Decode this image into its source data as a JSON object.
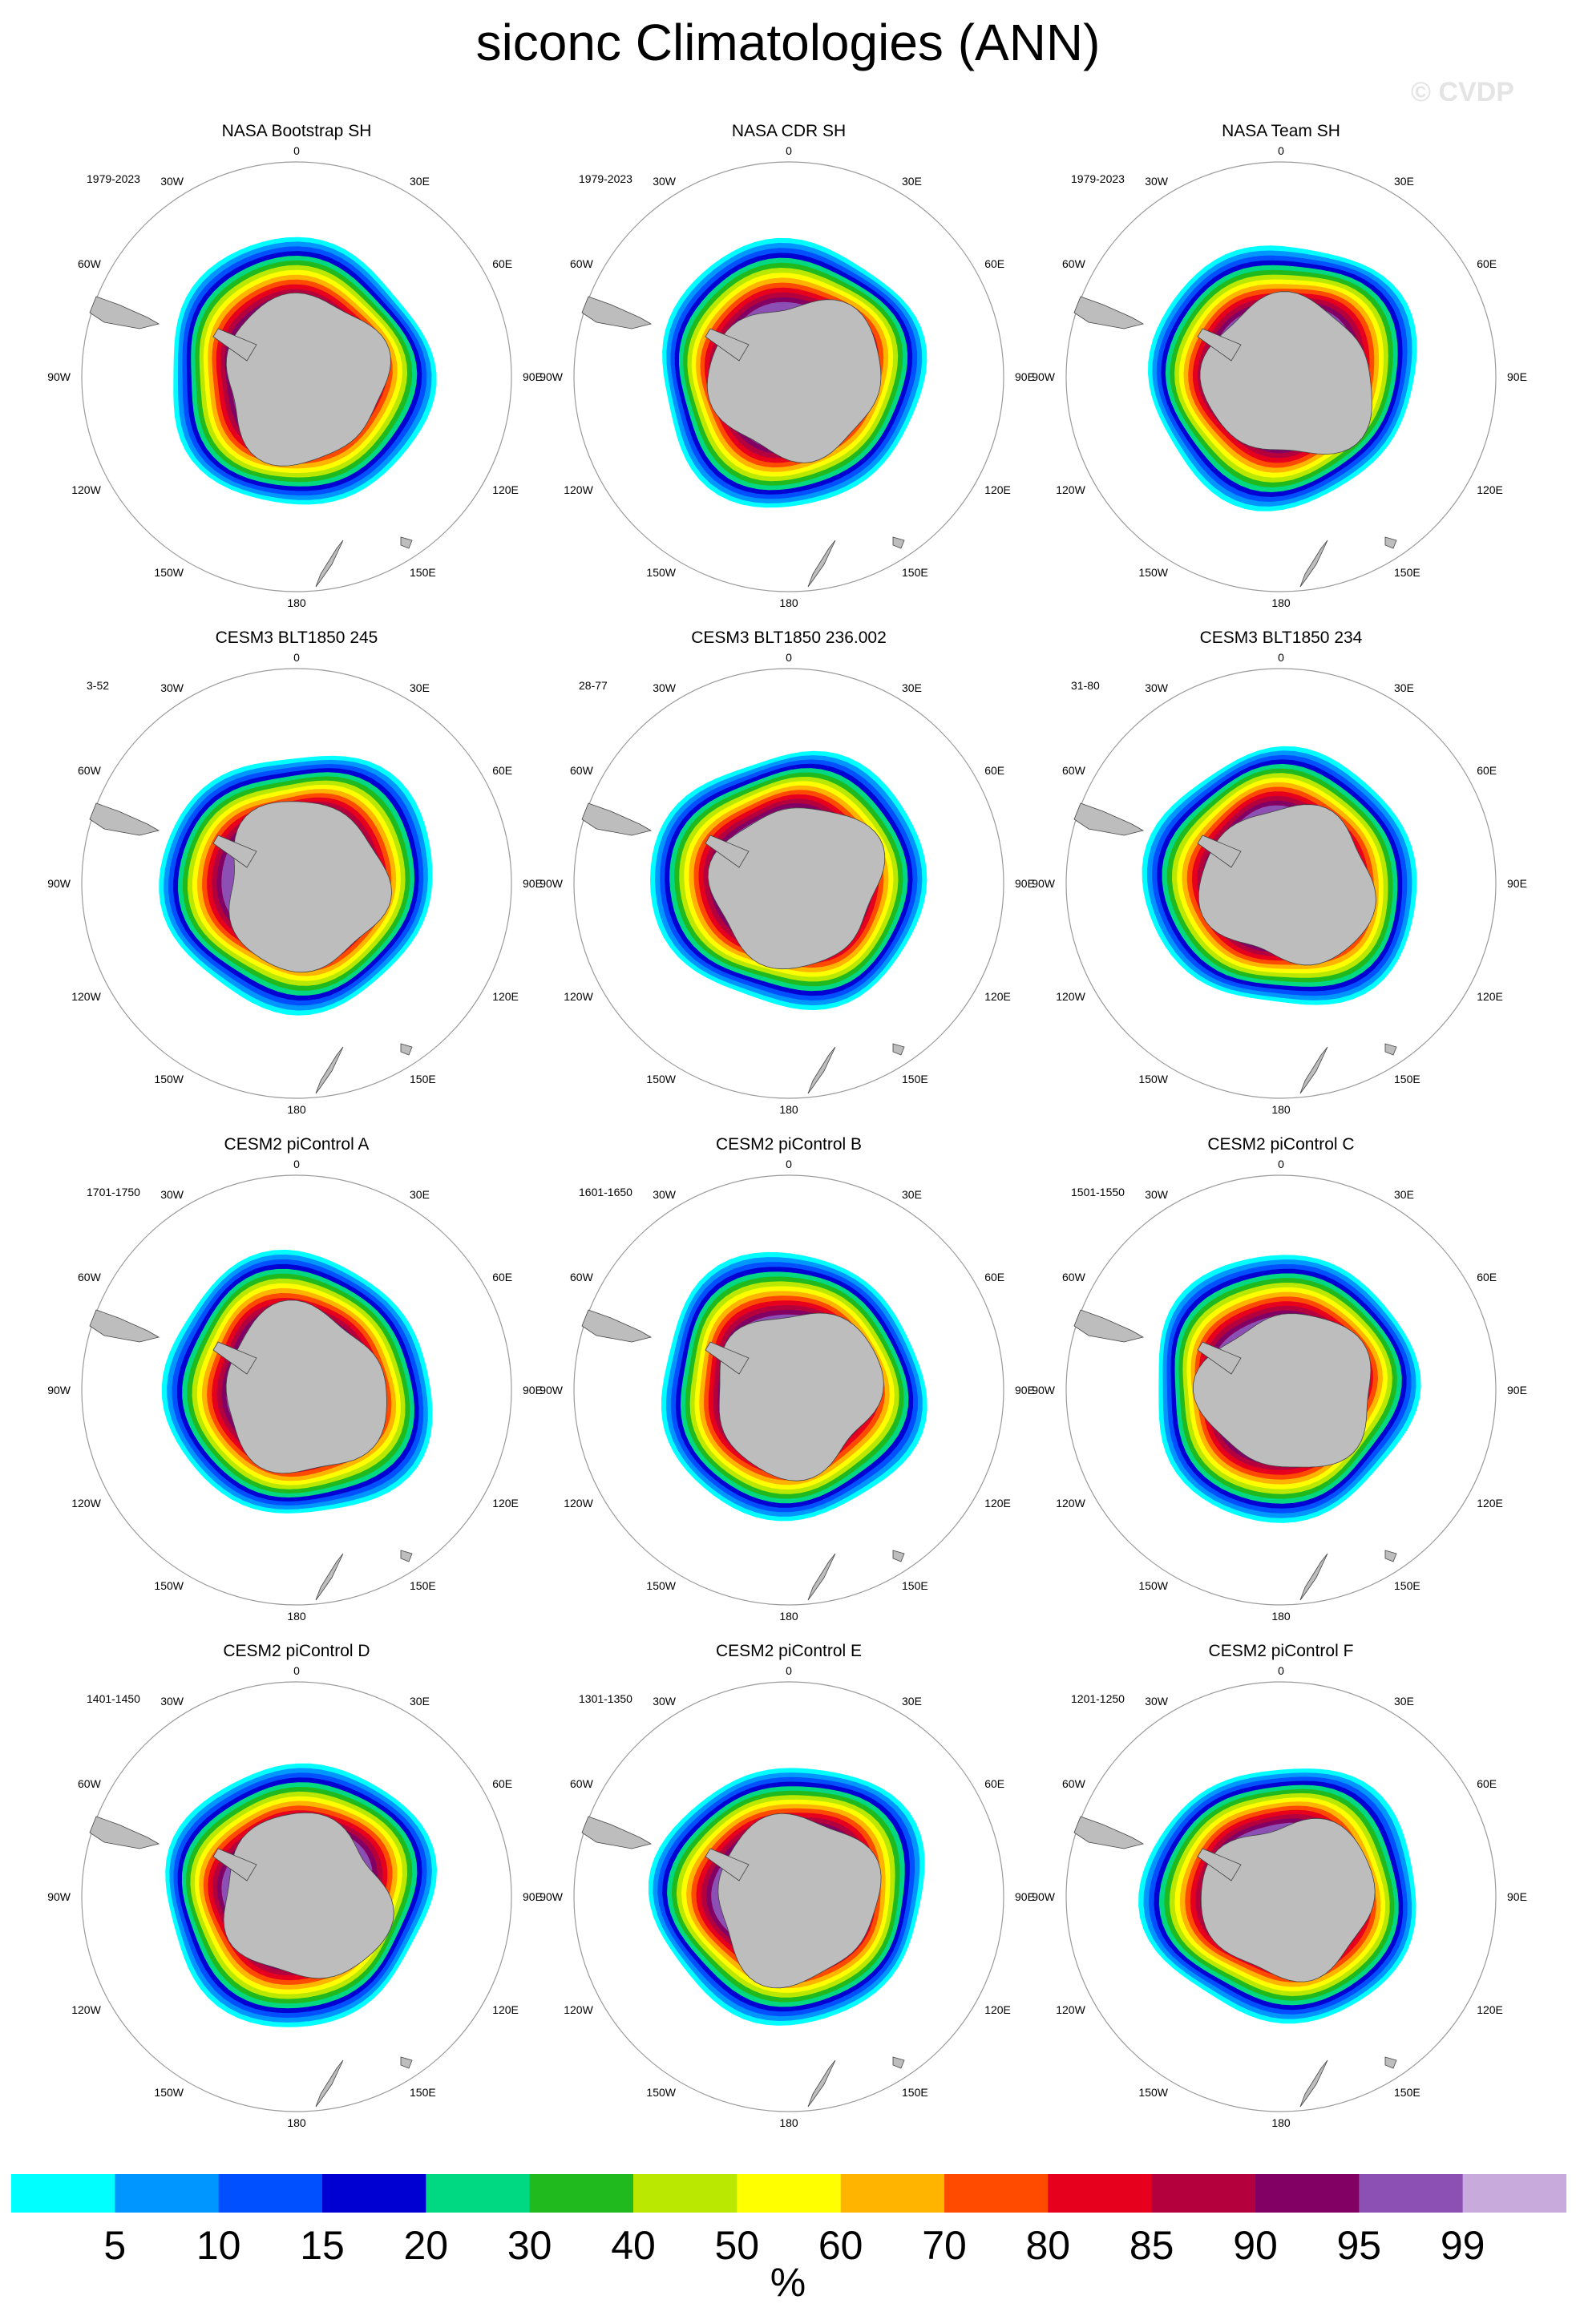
{
  "figure": {
    "title": "siconc Climatologies (ANN)",
    "copyright": "© CVDP"
  },
  "panels": [
    {
      "title": "NASA Bootstrap SH",
      "period": "1979-2023"
    },
    {
      "title": "NASA CDR SH",
      "period": "1979-2023"
    },
    {
      "title": "NASA Team SH",
      "period": "1979-2023"
    },
    {
      "title": "CESM3 BLT1850 245",
      "period": "3-52"
    },
    {
      "title": "CESM3 BLT1850 236.002",
      "period": "28-77"
    },
    {
      "title": "CESM3 BLT1850 234",
      "period": "31-80"
    },
    {
      "title": "CESM2 piControl A",
      "period": "1701-1750"
    },
    {
      "title": "CESM2 piControl B",
      "period": "1601-1650"
    },
    {
      "title": "CESM2 piControl C",
      "period": "1501-1550"
    },
    {
      "title": "CESM2 piControl D",
      "period": "1401-1450"
    },
    {
      "title": "CESM2 piControl E",
      "period": "1301-1350"
    },
    {
      "title": "CESM2 piControl F",
      "period": "1201-1250"
    }
  ],
  "lon_labels": [
    "0",
    "30E",
    "60E",
    "90E",
    "120E",
    "150E",
    "180",
    "150W",
    "120W",
    "90W",
    "60W",
    "30W"
  ],
  "colorbar": {
    "units": "%",
    "ticks": [
      "5",
      "10",
      "15",
      "20",
      "30",
      "40",
      "50",
      "60",
      "70",
      "80",
      "85",
      "90",
      "95",
      "99"
    ],
    "colors": [
      "#00ffff",
      "#0096ff",
      "#0050ff",
      "#0000d2",
      "#00d982",
      "#20b91e",
      "#bbe800",
      "#ffff00",
      "#ffb400",
      "#ff4b00",
      "#e6001e",
      "#b4003c",
      "#820064",
      "#8c50b4",
      "#c8aadc"
    ]
  },
  "land_color": "#bdbdbd"
}
